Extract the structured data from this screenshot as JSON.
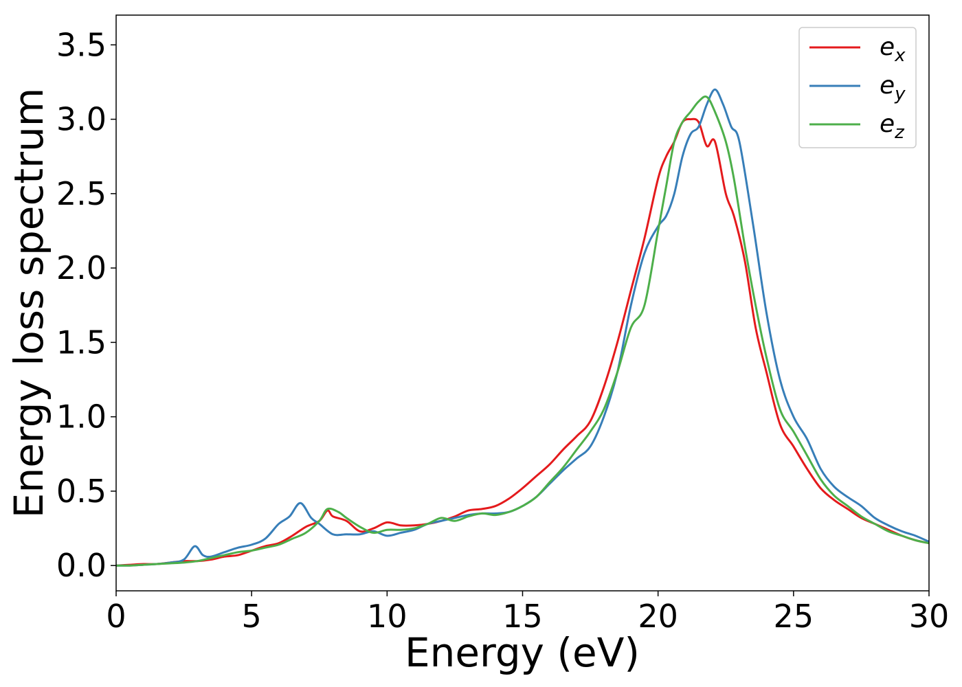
{
  "chart_data": {
    "type": "line",
    "title": "",
    "xlabel": "Energy (eV)",
    "ylabel": "Energy loss spectrum",
    "xlim": [
      0,
      30
    ],
    "ylim": [
      -0.17,
      3.7
    ],
    "xticks": [
      0,
      5,
      10,
      15,
      20,
      25,
      30
    ],
    "xtick_labels": [
      "0",
      "5",
      "10",
      "15",
      "20",
      "25",
      "30"
    ],
    "yticks": [
      0.0,
      0.5,
      1.0,
      1.5,
      2.0,
      2.5,
      3.0,
      3.5
    ],
    "ytick_labels": [
      "0.0",
      "0.5",
      "1.0",
      "1.5",
      "2.0",
      "2.5",
      "3.0",
      "3.5"
    ],
    "grid": false,
    "legend_position": "top-right",
    "series": [
      {
        "name": "e_x",
        "label_main": "e",
        "label_sub": "x",
        "color": "#e41a1c",
        "x": [
          0,
          0.5,
          1,
          1.5,
          2,
          2.5,
          3,
          3.5,
          4,
          4.5,
          5,
          5.5,
          6,
          6.5,
          7,
          7.5,
          7.8,
          8,
          8.5,
          9,
          9.5,
          10,
          10.5,
          11,
          11.5,
          12,
          12.5,
          13,
          13.5,
          14,
          14.5,
          15,
          15.5,
          16,
          16.5,
          17,
          17.5,
          18,
          18.5,
          19,
          19.5,
          20,
          20.3,
          20.6,
          20.9,
          21.2,
          21.5,
          21.8,
          22.1,
          22.5,
          22.8,
          23.2,
          23.6,
          24,
          24.5,
          25,
          25.5,
          26,
          26.5,
          27,
          27.5,
          28,
          28.5,
          29,
          29.5,
          30
        ],
        "y": [
          0.0,
          0.005,
          0.01,
          0.01,
          0.02,
          0.03,
          0.03,
          0.04,
          0.06,
          0.07,
          0.1,
          0.13,
          0.15,
          0.2,
          0.26,
          0.3,
          0.37,
          0.33,
          0.3,
          0.23,
          0.25,
          0.29,
          0.27,
          0.27,
          0.28,
          0.3,
          0.33,
          0.37,
          0.38,
          0.4,
          0.45,
          0.52,
          0.6,
          0.68,
          0.78,
          0.87,
          0.97,
          1.2,
          1.5,
          1.85,
          2.2,
          2.6,
          2.75,
          2.85,
          2.98,
          3.0,
          2.98,
          2.82,
          2.85,
          2.5,
          2.35,
          2.05,
          1.6,
          1.3,
          0.95,
          0.8,
          0.65,
          0.52,
          0.44,
          0.38,
          0.32,
          0.28,
          0.24,
          0.2,
          0.17,
          0.15
        ]
      },
      {
        "name": "e_y",
        "label_main": "e",
        "label_sub": "y",
        "color": "#377eb8",
        "x": [
          0,
          0.5,
          1,
          1.5,
          2,
          2.5,
          2.9,
          3.2,
          3.5,
          4,
          4.5,
          5,
          5.5,
          6,
          6.4,
          6.8,
          7.2,
          7.5,
          8,
          8.5,
          9,
          9.5,
          10,
          10.5,
          11,
          11.5,
          12,
          12.5,
          13,
          13.5,
          14,
          14.5,
          15,
          15.5,
          16,
          16.5,
          17,
          17.5,
          18,
          18.5,
          19,
          19.5,
          20,
          20.3,
          20.6,
          20.9,
          21.2,
          21.5,
          21.8,
          22.1,
          22.4,
          22.7,
          23,
          23.5,
          24,
          24.5,
          25,
          25.5,
          26,
          26.5,
          27,
          27.5,
          28,
          28.5,
          29,
          29.5,
          30
        ],
        "y": [
          0.0,
          0.0,
          0.005,
          0.01,
          0.02,
          0.04,
          0.13,
          0.07,
          0.06,
          0.09,
          0.12,
          0.14,
          0.18,
          0.28,
          0.33,
          0.42,
          0.32,
          0.28,
          0.21,
          0.21,
          0.21,
          0.23,
          0.2,
          0.22,
          0.24,
          0.28,
          0.3,
          0.32,
          0.34,
          0.35,
          0.35,
          0.36,
          0.4,
          0.46,
          0.55,
          0.64,
          0.72,
          0.8,
          1.0,
          1.3,
          1.75,
          2.1,
          2.28,
          2.35,
          2.5,
          2.75,
          2.9,
          2.95,
          3.1,
          3.2,
          3.1,
          2.95,
          2.85,
          2.3,
          1.7,
          1.25,
          1.0,
          0.85,
          0.65,
          0.53,
          0.46,
          0.4,
          0.32,
          0.27,
          0.23,
          0.2,
          0.16
        ]
      },
      {
        "name": "e_z",
        "label_main": "e",
        "label_sub": "z",
        "color": "#4daf4a",
        "x": [
          0,
          0.5,
          1,
          1.5,
          2,
          2.5,
          3,
          3.5,
          4,
          4.5,
          5,
          5.5,
          6,
          6.5,
          7,
          7.5,
          7.8,
          8.2,
          8.5,
          9,
          9.5,
          10,
          10.5,
          11,
          11.5,
          12,
          12.5,
          13,
          13.5,
          14,
          14.5,
          15,
          15.5,
          16,
          16.5,
          17,
          17.5,
          18,
          18.5,
          19,
          19.5,
          20,
          20.3,
          20.6,
          20.9,
          21.2,
          21.5,
          21.8,
          22.1,
          22.5,
          22.8,
          23.2,
          23.6,
          24,
          24.5,
          25,
          25.5,
          26,
          26.5,
          27,
          27.5,
          28,
          28.5,
          29,
          29.5,
          30
        ],
        "y": [
          0.0,
          0.0,
          0.005,
          0.01,
          0.015,
          0.02,
          0.03,
          0.05,
          0.07,
          0.09,
          0.1,
          0.12,
          0.14,
          0.18,
          0.22,
          0.3,
          0.38,
          0.36,
          0.32,
          0.26,
          0.22,
          0.24,
          0.24,
          0.25,
          0.28,
          0.32,
          0.3,
          0.33,
          0.35,
          0.34,
          0.36,
          0.4,
          0.46,
          0.56,
          0.66,
          0.78,
          0.9,
          1.05,
          1.3,
          1.6,
          1.75,
          2.25,
          2.55,
          2.85,
          2.98,
          3.05,
          3.12,
          3.15,
          3.05,
          2.85,
          2.6,
          2.15,
          1.75,
          1.4,
          1.05,
          0.9,
          0.74,
          0.58,
          0.47,
          0.4,
          0.33,
          0.28,
          0.23,
          0.2,
          0.17,
          0.15
        ]
      }
    ]
  }
}
